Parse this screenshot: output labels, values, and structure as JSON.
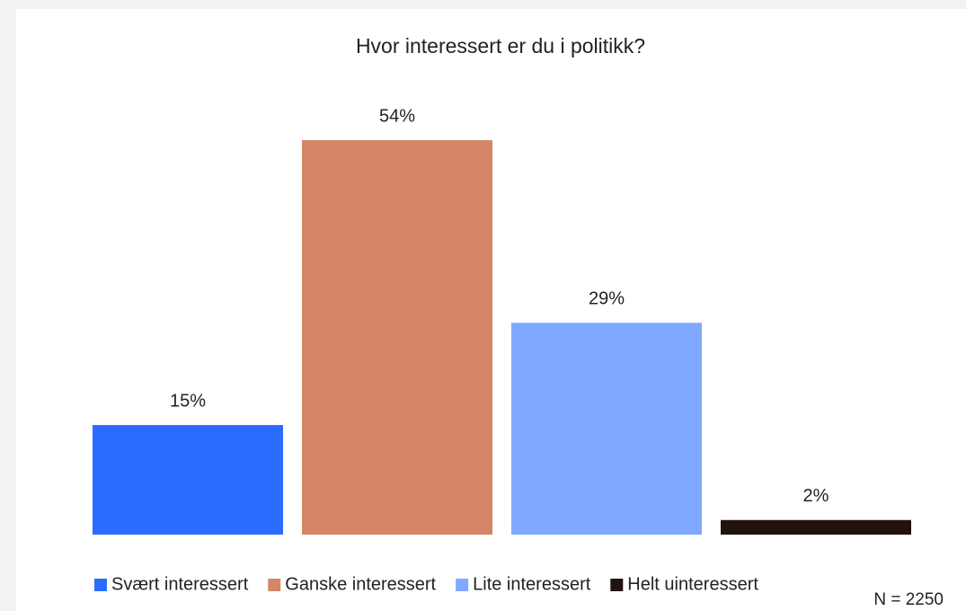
{
  "chart_data": {
    "type": "bar",
    "title": "Hvor interessert er du i politikk?",
    "categories": [
      "Svært interessert",
      "Ganske interessert",
      "Lite interessert",
      "Helt uinteressert"
    ],
    "values": [
      15,
      54,
      29,
      2
    ],
    "value_labels": [
      "15%",
      "54%",
      "29%",
      "2%"
    ],
    "colors": [
      "#2b6bff",
      "#d58667",
      "#80a8ff",
      "#22120e"
    ],
    "note": "N = 2250"
  }
}
